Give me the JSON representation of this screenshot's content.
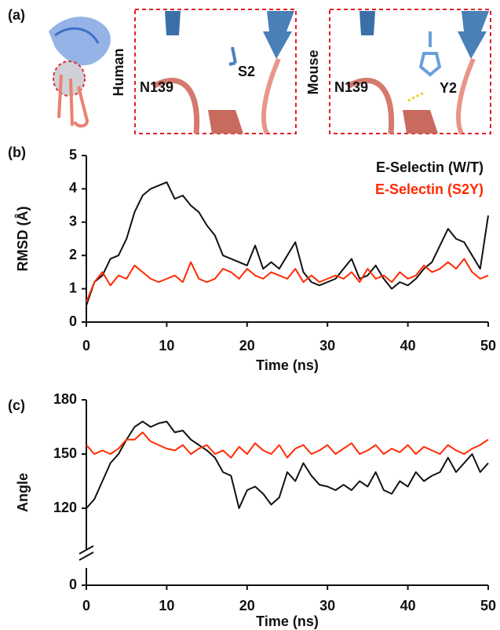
{
  "panel_a": {
    "label": "(a)",
    "left_title": "Human",
    "right_title": "Mouse",
    "left_residues": [
      "N139",
      "S2"
    ],
    "right_residues": [
      "N139",
      "Y2"
    ]
  },
  "chart_data": [
    {
      "type": "line",
      "panel": "(b)",
      "xlabel": "Time (ns)",
      "ylabel": "RMSD (Å)",
      "xlim": [
        0,
        50
      ],
      "xticks": [
        0,
        10,
        20,
        30,
        40,
        50
      ],
      "ylim": [
        0,
        5
      ],
      "yticks": [
        0,
        1,
        2,
        3,
        4,
        5
      ],
      "legend": "upper right",
      "x": [
        0,
        1,
        2,
        3,
        4,
        5,
        6,
        7,
        8,
        9,
        10,
        11,
        12,
        13,
        14,
        15,
        16,
        17,
        18,
        19,
        20,
        21,
        22,
        23,
        24,
        25,
        26,
        27,
        28,
        29,
        30,
        31,
        32,
        33,
        34,
        35,
        36,
        37,
        38,
        39,
        40,
        41,
        42,
        43,
        44,
        45,
        46,
        47,
        48,
        49,
        50
      ],
      "series": [
        {
          "name": "E-Selectin (W/T)",
          "color": "#111111",
          "values": [
            0.5,
            1.2,
            1.4,
            1.9,
            2.0,
            2.5,
            3.3,
            3.8,
            4.0,
            4.1,
            4.2,
            3.7,
            3.8,
            3.5,
            3.3,
            2.9,
            2.6,
            2.0,
            1.9,
            1.8,
            1.7,
            2.3,
            1.6,
            1.8,
            1.6,
            2.0,
            2.4,
            1.5,
            1.2,
            1.1,
            1.2,
            1.3,
            1.6,
            1.9,
            1.3,
            1.4,
            1.7,
            1.3,
            1.0,
            1.2,
            1.1,
            1.3,
            1.6,
            1.8,
            2.3,
            2.8,
            2.5,
            2.4,
            2.0,
            1.6,
            3.2
          ]
        },
        {
          "name": "E-Selectin (S2Y)",
          "color": "#ff2a00",
          "values": [
            0.6,
            1.2,
            1.5,
            1.1,
            1.4,
            1.3,
            1.7,
            1.5,
            1.3,
            1.2,
            1.3,
            1.4,
            1.2,
            1.8,
            1.3,
            1.2,
            1.3,
            1.6,
            1.5,
            1.3,
            1.6,
            1.4,
            1.3,
            1.5,
            1.4,
            1.3,
            1.6,
            1.2,
            1.4,
            1.2,
            1.3,
            1.4,
            1.3,
            1.5,
            1.2,
            1.6,
            1.3,
            1.4,
            1.2,
            1.5,
            1.3,
            1.4,
            1.7,
            1.5,
            1.6,
            1.8,
            1.6,
            1.9,
            1.5,
            1.3,
            1.4
          ]
        }
      ]
    },
    {
      "type": "line",
      "panel": "(c)",
      "xlabel": "Time (ns)",
      "ylabel": "Angle",
      "xlim": [
        0,
        50
      ],
      "xticks": [
        0,
        10,
        20,
        30,
        40,
        50
      ],
      "ylim": [
        100,
        180
      ],
      "yticks": [
        0,
        120,
        150,
        180
      ],
      "y_break": true,
      "x": [
        0,
        1,
        2,
        3,
        4,
        5,
        6,
        7,
        8,
        9,
        10,
        11,
        12,
        13,
        14,
        15,
        16,
        17,
        18,
        19,
        20,
        21,
        22,
        23,
        24,
        25,
        26,
        27,
        28,
        29,
        30,
        31,
        32,
        33,
        34,
        35,
        36,
        37,
        38,
        39,
        40,
        41,
        42,
        43,
        44,
        45,
        46,
        47,
        48,
        49,
        50
      ],
      "series": [
        {
          "color": "#111111",
          "values": [
            120,
            125,
            135,
            145,
            150,
            158,
            165,
            168,
            165,
            167,
            168,
            162,
            163,
            158,
            155,
            152,
            148,
            140,
            138,
            120,
            130,
            132,
            128,
            122,
            126,
            140,
            135,
            145,
            138,
            133,
            132,
            130,
            133,
            130,
            135,
            132,
            140,
            130,
            128,
            135,
            132,
            140,
            135,
            138,
            140,
            148,
            140,
            145,
            150,
            140,
            145
          ]
        },
        {
          "color": "#ff2a00",
          "values": [
            155,
            150,
            152,
            150,
            153,
            158,
            158,
            162,
            157,
            155,
            153,
            152,
            155,
            150,
            153,
            155,
            150,
            152,
            148,
            154,
            150,
            156,
            152,
            150,
            155,
            148,
            153,
            155,
            150,
            152,
            155,
            150,
            153,
            156,
            150,
            152,
            155,
            150,
            153,
            151,
            155,
            150,
            154,
            152,
            150,
            155,
            152,
            150,
            153,
            155,
            158
          ]
        }
      ]
    }
  ]
}
